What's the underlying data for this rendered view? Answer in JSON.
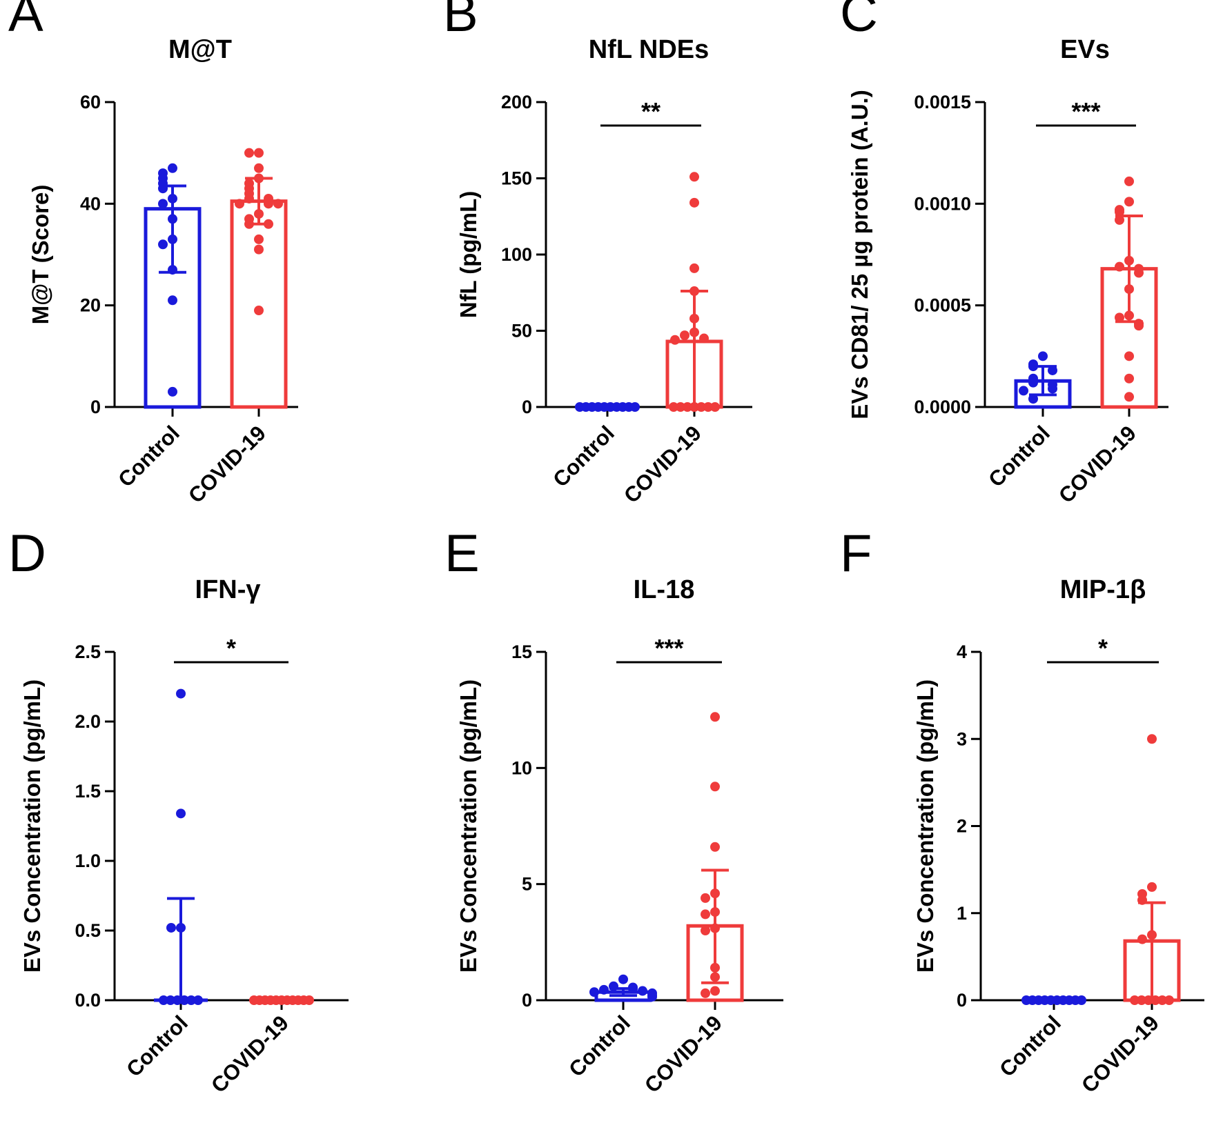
{
  "colors": {
    "control": "#1a1adb",
    "covid": "#ef3b3b",
    "axis": "#000000"
  },
  "chart_data": [
    {
      "panel": "A",
      "type": "bar",
      "title": "M@T",
      "ylabel": "M@T (Score)",
      "ylim": [
        0,
        60
      ],
      "yticks": [
        "0",
        "20",
        "40",
        "60"
      ],
      "categories": [
        "Control",
        "COVID-19"
      ],
      "bar_style": "hollow",
      "means": [
        39,
        40.5
      ],
      "sd": [
        [
          26.5,
          43.5
        ],
        [
          36,
          45
        ]
      ],
      "significance": "",
      "points": [
        [
          47,
          46,
          45,
          44,
          43,
          41,
          40,
          37,
          33,
          32,
          27,
          21,
          3
        ],
        [
          50,
          50,
          47,
          45,
          44,
          43,
          42,
          41,
          41,
          40,
          40,
          40,
          38,
          37,
          36,
          36,
          33,
          31,
          19
        ]
      ]
    },
    {
      "panel": "B",
      "type": "bar",
      "title": "NfL NDEs",
      "ylabel": "NfL (pg/mL)",
      "ylim": [
        0,
        200
      ],
      "yticks": [
        "0",
        "50",
        "100",
        "150",
        "200"
      ],
      "categories": [
        "Control",
        "COVID-19"
      ],
      "bar_style": "hollow",
      "means": [
        0.5,
        43
      ],
      "sd": [
        [
          0,
          1
        ],
        [
          0,
          76
        ]
      ],
      "significance": "**",
      "points": [
        [
          0,
          0,
          0,
          0,
          0,
          0,
          0,
          0,
          0,
          0
        ],
        [
          151,
          134,
          91,
          76,
          58,
          49,
          47,
          45,
          44,
          0,
          0,
          0,
          0,
          0,
          0,
          0
        ]
      ]
    },
    {
      "panel": "C",
      "type": "bar",
      "title": "EVs",
      "ylabel": "EVs CD81/ 25 µg protein (A.U.)",
      "ylim": [
        0,
        0.0015
      ],
      "yticks": [
        "0.0000",
        "0.0005",
        "0.0010",
        "0.0015"
      ],
      "categories": [
        "Control",
        "COVID-19"
      ],
      "bar_style": "hollow",
      "means": [
        0.000128,
        0.00068
      ],
      "sd": [
        [
          6e-05,
          0.0002
        ],
        [
          0.00042,
          0.00094
        ]
      ],
      "significance": "***",
      "points": [
        [
          0.00025,
          0.00021,
          0.0002,
          0.00018,
          0.00014,
          0.00012,
          0.00011,
          9e-05,
          8e-05,
          4e-05
        ],
        [
          0.00111,
          0.00101,
          0.00097,
          0.00096,
          0.00092,
          0.00072,
          0.00069,
          0.00068,
          0.00066,
          0.00058,
          0.00045,
          0.00044,
          0.00041,
          0.0004,
          0.00025,
          0.00014,
          5e-05
        ]
      ]
    },
    {
      "panel": "D",
      "type": "bar",
      "title": "IFN-γ",
      "ylabel": "EVs Concentration (pg/mL)",
      "ylim": [
        0,
        2.5
      ],
      "yticks": [
        "0.0",
        "0.5",
        "1.0",
        "1.5",
        "2.0",
        "2.5"
      ],
      "categories": [
        "Control",
        "COVID-19"
      ],
      "bar_style": "line",
      "means": [
        0,
        0
      ],
      "sd": [
        [
          0,
          0.73
        ],
        [
          0,
          0
        ]
      ],
      "significance": "*",
      "points": [
        [
          2.2,
          1.34,
          0.52,
          0.52,
          0,
          0,
          0,
          0,
          0,
          0
        ],
        [
          0,
          0,
          0,
          0,
          0,
          0,
          0,
          0,
          0,
          0,
          0
        ]
      ]
    },
    {
      "panel": "E",
      "type": "bar",
      "title": "IL-18",
      "ylabel": "EVs Concentration (pg/mL)",
      "ylim": [
        0,
        15
      ],
      "yticks": [
        "0",
        "5",
        "10",
        "15"
      ],
      "categories": [
        "Control",
        "COVID-19"
      ],
      "bar_style": "hollow",
      "means": [
        0.35,
        3.2
      ],
      "sd": [
        [
          0.2,
          0.5
        ],
        [
          0.75,
          5.6
        ]
      ],
      "significance": "***",
      "points": [
        [
          0.9,
          0.6,
          0.55,
          0.5,
          0.45,
          0.4,
          0.35,
          0.3,
          0.2,
          0.15
        ],
        [
          12.2,
          9.2,
          6.6,
          4.6,
          4.4,
          3.8,
          3.7,
          3.1,
          3.0,
          1.4,
          1.0,
          0.4,
          0.3
        ]
      ]
    },
    {
      "panel": "F",
      "type": "bar",
      "title": "MIP-1β",
      "ylabel": "EVs Concentration (pg/mL)",
      "ylim": [
        0,
        4
      ],
      "yticks": [
        "0",
        "1",
        "2",
        "3",
        "4"
      ],
      "categories": [
        "Control",
        "COVID-19"
      ],
      "bar_style": "hollow",
      "means": [
        0,
        0.68
      ],
      "sd": [
        [
          0,
          0
        ],
        [
          0,
          1.12
        ]
      ],
      "significance": "*",
      "points": [
        [
          0,
          0,
          0,
          0,
          0,
          0,
          0,
          0,
          0,
          0
        ],
        [
          3.0,
          1.3,
          1.22,
          1.15,
          0.75,
          0.7,
          0,
          0,
          0,
          0,
          0,
          0
        ]
      ]
    }
  ]
}
